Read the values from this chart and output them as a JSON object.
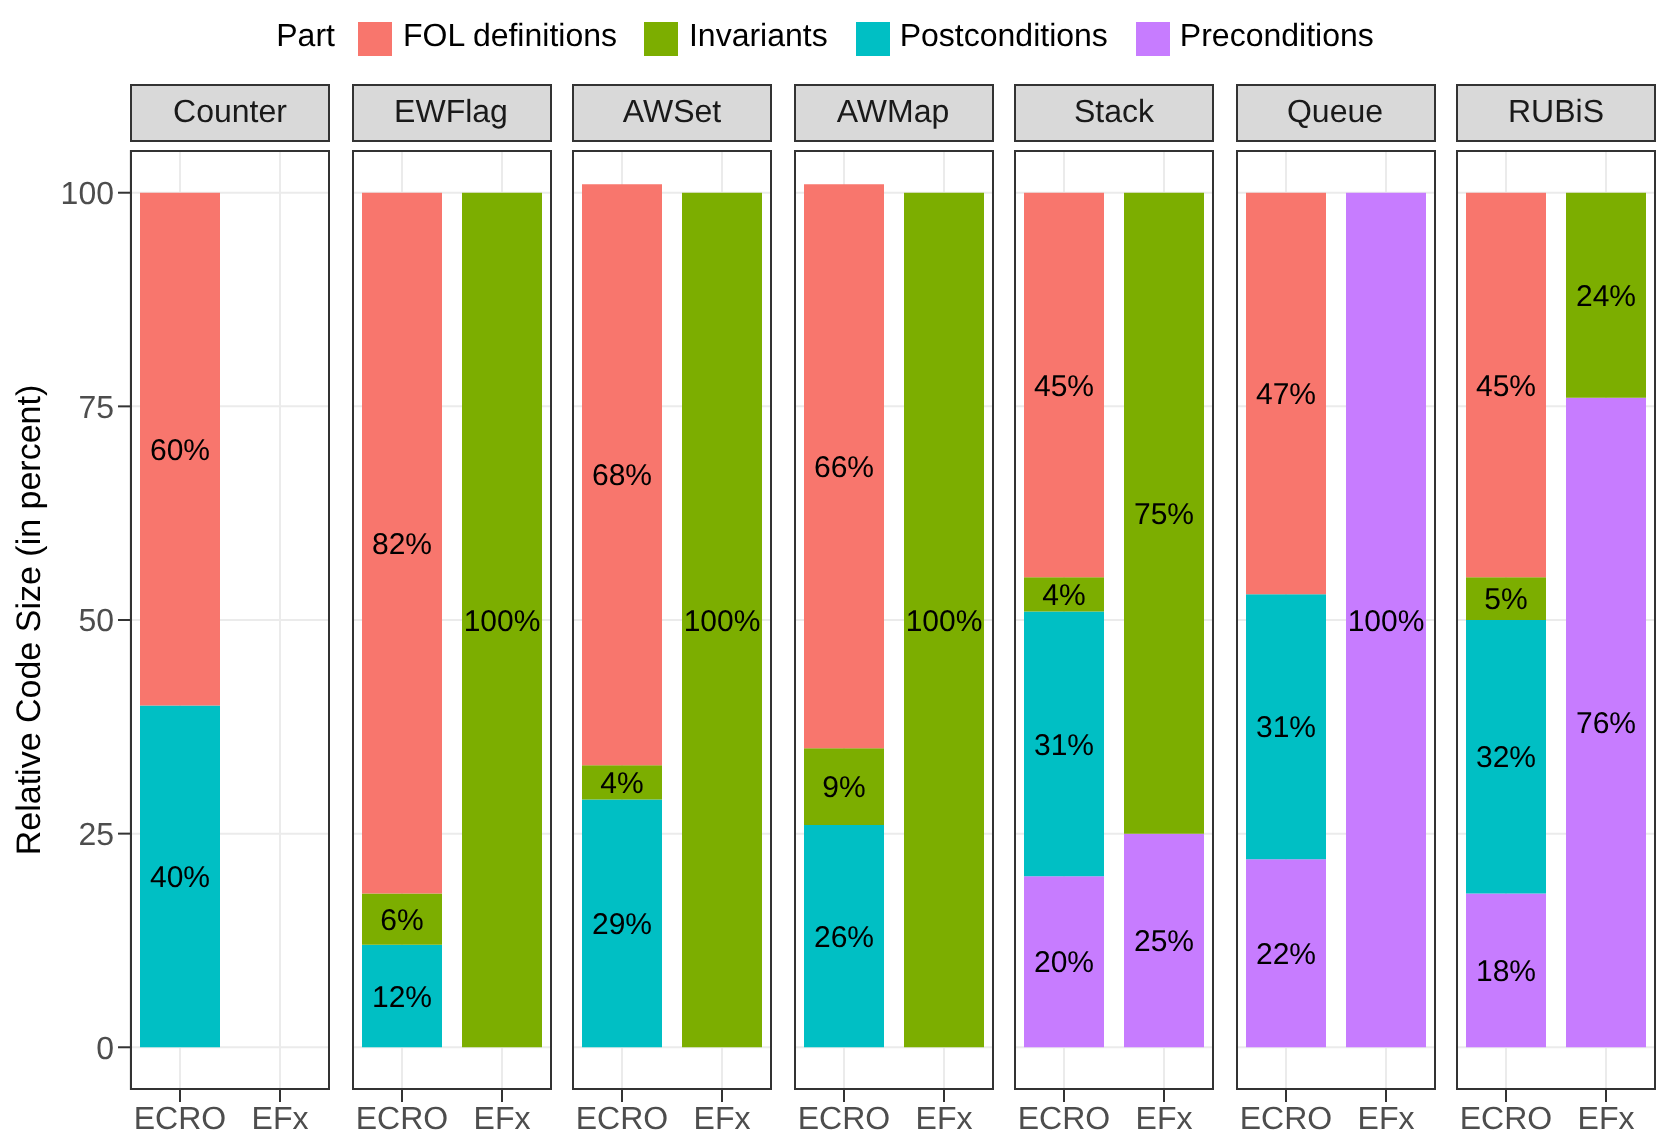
{
  "chart_data": [
    {
      "type": "bar",
      "title": "Counter",
      "ylabel": "Relative Code Size (in percent)",
      "legend_title": "Part",
      "legend": "top",
      "stacked": true,
      "grid": true,
      "categories": [
        "ECRO",
        "EFx"
      ],
      "ylim": [
        -5,
        105
      ],
      "yticks": [
        0,
        25,
        50,
        75,
        100
      ],
      "series": [
        {
          "name": "Preconditions",
          "color": "#c77cff",
          "values": [
            null,
            null
          ],
          "value_labels": [
            null,
            null
          ]
        },
        {
          "name": "Postconditions",
          "color": "#00bfc4",
          "values": [
            40,
            null
          ],
          "value_labels": [
            "40%",
            null
          ]
        },
        {
          "name": "Invariants",
          "color": "#7cae00",
          "values": [
            null,
            null
          ],
          "value_labels": [
            null,
            null
          ]
        },
        {
          "name": "FOL definitions",
          "color": "#f8766d",
          "values": [
            60,
            null
          ],
          "value_labels": [
            "60%",
            null
          ]
        }
      ]
    },
    {
      "type": "bar",
      "title": "EWFlag",
      "stacked": true,
      "grid": true,
      "tick_labels": "x",
      "categories": [
        "ECRO",
        "EFx"
      ],
      "ylim": [
        -5,
        105
      ],
      "yticks": [
        0,
        25,
        50,
        75,
        100
      ],
      "series": [
        {
          "color": "#c77cff",
          "values": [
            null,
            null
          ],
          "value_labels": [
            null,
            null
          ]
        },
        {
          "color": "#00bfc4",
          "values": [
            12,
            null
          ],
          "value_labels": [
            "12%",
            null
          ]
        },
        {
          "color": "#7cae00",
          "values": [
            6,
            100
          ],
          "value_labels": [
            "6%",
            "100%"
          ]
        },
        {
          "color": "#f8766d",
          "values": [
            82,
            null
          ],
          "value_labels": [
            "82%",
            null
          ]
        }
      ]
    },
    {
      "type": "bar",
      "title": "AWSet",
      "stacked": true,
      "grid": true,
      "tick_labels": "x",
      "categories": [
        "ECRO",
        "EFx"
      ],
      "ylim": [
        -5,
        105
      ],
      "yticks": [
        0,
        25,
        50,
        75,
        100
      ],
      "series": [
        {
          "color": "#c77cff",
          "values": [
            null,
            null
          ],
          "value_labels": [
            null,
            null
          ]
        },
        {
          "color": "#00bfc4",
          "values": [
            29,
            null
          ],
          "value_labels": [
            "29%",
            null
          ]
        },
        {
          "color": "#7cae00",
          "values": [
            4,
            100
          ],
          "value_labels": [
            "4%",
            "100%"
          ]
        },
        {
          "color": "#f8766d",
          "values": [
            68,
            null
          ],
          "value_labels": [
            "68%",
            null
          ]
        }
      ]
    },
    {
      "type": "bar",
      "title": "AWMap",
      "stacked": true,
      "grid": true,
      "tick_labels": "x",
      "categories": [
        "ECRO",
        "EFx"
      ],
      "ylim": [
        -5,
        105
      ],
      "yticks": [
        0,
        25,
        50,
        75,
        100
      ],
      "series": [
        {
          "color": "#c77cff",
          "values": [
            null,
            null
          ],
          "value_labels": [
            null,
            null
          ]
        },
        {
          "color": "#00bfc4",
          "values": [
            26,
            null
          ],
          "value_labels": [
            "26%",
            null
          ]
        },
        {
          "color": "#7cae00",
          "values": [
            9,
            100
          ],
          "value_labels": [
            "9%",
            "100%"
          ]
        },
        {
          "color": "#f8766d",
          "values": [
            66,
            null
          ],
          "value_labels": [
            "66%",
            null
          ]
        }
      ]
    },
    {
      "type": "bar",
      "title": "Stack",
      "stacked": true,
      "grid": true,
      "tick_labels": "x",
      "categories": [
        "ECRO",
        "EFx"
      ],
      "ylim": [
        -5,
        105
      ],
      "yticks": [
        0,
        25,
        50,
        75,
        100
      ],
      "series": [
        {
          "color": "#c77cff",
          "values": [
            20,
            25
          ],
          "value_labels": [
            "20%",
            "25%"
          ]
        },
        {
          "color": "#00bfc4",
          "values": [
            31,
            null
          ],
          "value_labels": [
            "31%",
            null
          ]
        },
        {
          "color": "#7cae00",
          "values": [
            4,
            75
          ],
          "value_labels": [
            "4%",
            "75%"
          ]
        },
        {
          "color": "#f8766d",
          "values": [
            45,
            null
          ],
          "value_labels": [
            "45%",
            null
          ]
        }
      ]
    },
    {
      "type": "bar",
      "title": "Queue",
      "stacked": true,
      "grid": true,
      "tick_labels": "x",
      "categories": [
        "ECRO",
        "EFx"
      ],
      "ylim": [
        -5,
        105
      ],
      "yticks": [
        0,
        25,
        50,
        75,
        100
      ],
      "series": [
        {
          "color": "#c77cff",
          "values": [
            22,
            100
          ],
          "value_labels": [
            "22%",
            "100%"
          ]
        },
        {
          "color": "#00bfc4",
          "values": [
            31,
            null
          ],
          "value_labels": [
            "31%",
            null
          ]
        },
        {
          "color": "#7cae00",
          "values": [
            null,
            null
          ],
          "value_labels": [
            null,
            null
          ]
        },
        {
          "color": "#f8766d",
          "values": [
            47,
            null
          ],
          "value_labels": [
            "47%",
            null
          ]
        }
      ]
    },
    {
      "type": "bar",
      "title": "RUBiS",
      "stacked": true,
      "grid": true,
      "tick_labels": "x",
      "categories": [
        "ECRO",
        "EFx"
      ],
      "ylim": [
        -5,
        105
      ],
      "yticks": [
        0,
        25,
        50,
        75,
        100
      ],
      "series": [
        {
          "color": "#c77cff",
          "values": [
            18,
            76
          ],
          "value_labels": [
            "18%",
            "76%"
          ]
        },
        {
          "color": "#00bfc4",
          "values": [
            32,
            null
          ],
          "value_labels": [
            "32%",
            null
          ]
        },
        {
          "color": "#7cae00",
          "values": [
            5,
            24
          ],
          "value_labels": [
            "5%",
            "24%"
          ]
        },
        {
          "color": "#f8766d",
          "values": [
            45,
            null
          ],
          "value_labels": [
            "45%",
            null
          ]
        }
      ]
    }
  ]
}
